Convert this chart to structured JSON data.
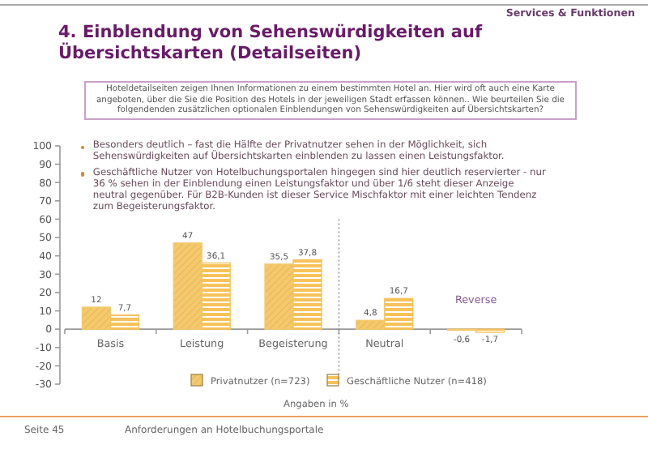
{
  "chart_data": {
    "type": "bar",
    "title": "4. Einblendung von Sehenswürdigkeiten auf Übersichtskarten (Detailseiten)",
    "categories": [
      "Basis",
      "Leistung",
      "Begeisterung",
      "Neutral",
      "Reverse"
    ],
    "series": [
      {
        "name": "Privatnutzer (n=723)",
        "color": "#f5c96a",
        "values": [
          12,
          47,
          35.5,
          4.8,
          -0.6
        ],
        "value_labels": [
          "12",
          "47",
          "35,5",
          "4,8",
          "-0,6"
        ]
      },
      {
        "name": "Geschäftliche Nutzer (n=418)",
        "color": "#f7c25a",
        "values": [
          7.7,
          36.1,
          37.8,
          16.7,
          -1.7
        ],
        "value_labels": [
          "7,7",
          "36,1",
          "37,8",
          "16,7",
          "-1,7"
        ]
      }
    ],
    "ylim": [
      -30,
      100
    ],
    "yticks": [
      -30,
      -20,
      -10,
      0,
      10,
      20,
      30,
      40,
      50,
      60,
      70,
      80,
      90,
      100
    ],
    "grid": false,
    "legend": "bottom",
    "annotations": [
      "Services & Funktionen",
      "Hoteldetailseiten zeigen Ihnen Informationen zu einem bestimmten Hotel an. Hier wird oft auch eine Karte angeboten, über die Sie die Position des Hotels in der jeweiligen Stadt erfassen können.. Wie beurteilen Sie die folgendenden zusätzlichen optionalen Einblendungen von Sehenswürdigkeiten auf Übersichtskarten?",
      "Besonders deutlich – fast die Hälfte der Privatnutzer sehen in der Möglichkeit, sich Sehenswürdigkeiten auf Übersichtskarten einblenden zu lassen einen Leistungsfaktor.",
      "Geschäftliche Nutzer von Hotelbuchungsportalen hingegen sind hier deutlich reservierter - nur 36 % sehen in der Einblendung einen Leistungsfaktor und über 1/6 steht dieser Anzeige neutral gegenüber. Für B2B-Kunden ist dieser Service Mischfaktor mit einer leichten Tendenz zum Begeisterungsfaktor.",
      "Angaben in %",
      "Seite 45",
      "Anforderungen an Hotelbuchungsportale"
    ]
  }
}
